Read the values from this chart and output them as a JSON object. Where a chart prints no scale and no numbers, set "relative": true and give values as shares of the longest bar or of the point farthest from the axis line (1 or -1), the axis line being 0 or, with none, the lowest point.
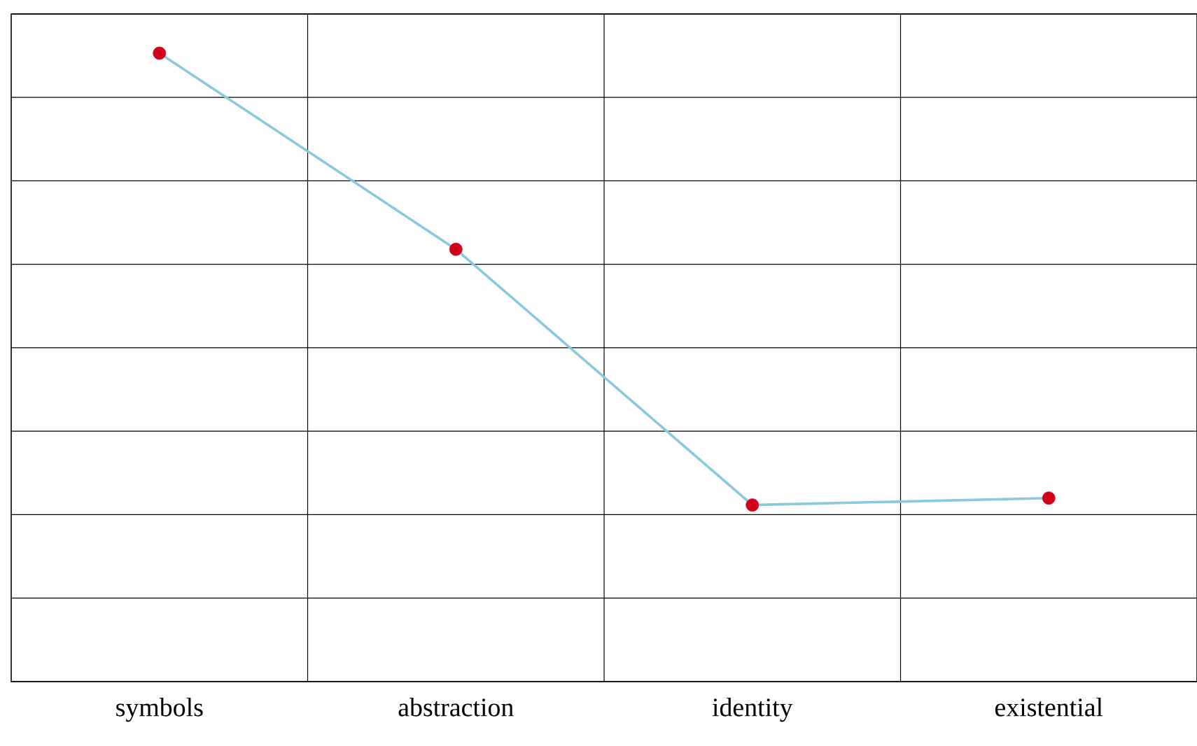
{
  "chart_data": {
    "type": "line",
    "relative": true,
    "categories": [
      "symbols",
      "abstraction",
      "identity",
      "existential"
    ],
    "series": [
      {
        "color": "#89c8dd",
        "colors": [
          "#d0021b",
          "#d0021b",
          "#d0021b",
          "#d0021b"
        ],
        "values": [
          1,
          0.688,
          0.281,
          0.292
        ]
      }
    ],
    "grid": true,
    "marker": "circle",
    "line_style": "solid"
  }
}
